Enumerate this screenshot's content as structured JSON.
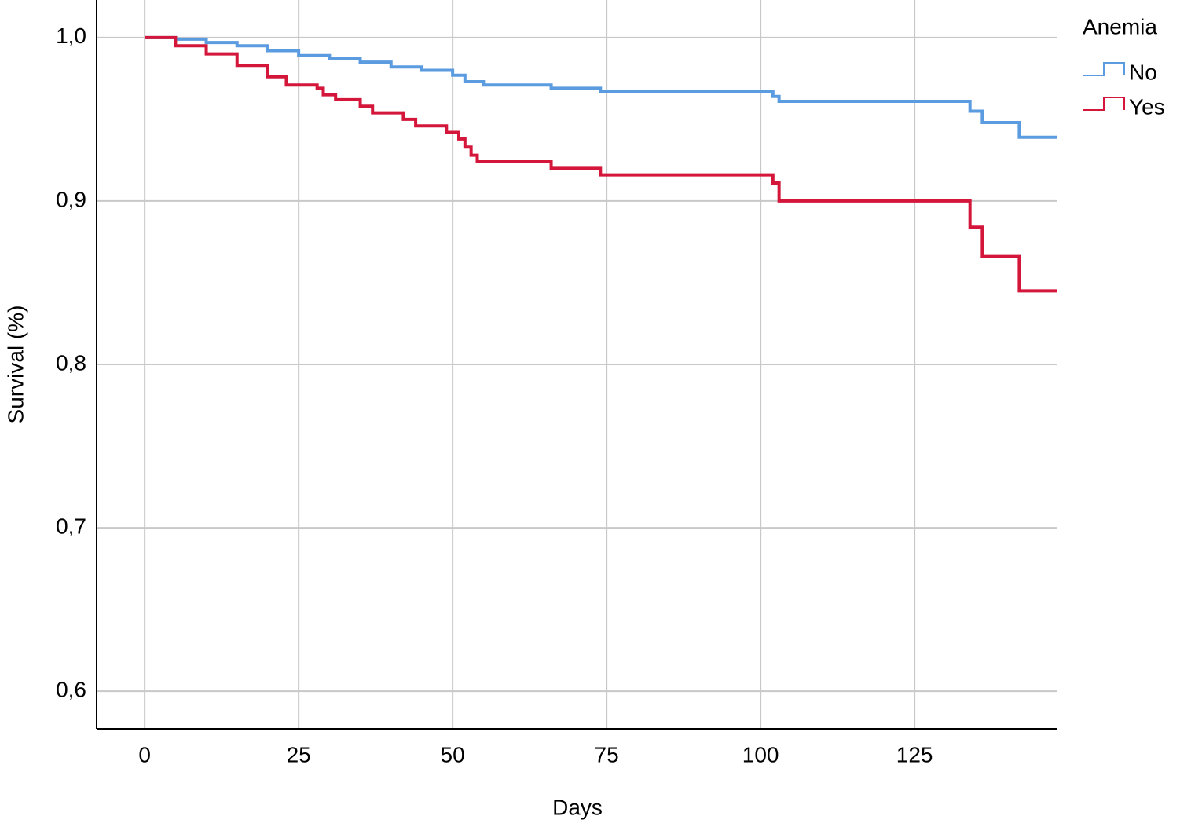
{
  "chart_data": {
    "type": "step",
    "y_label": "Survival (%)",
    "x_label": "Days",
    "legend_title": "Anemia",
    "legend": "right-top",
    "grid": true,
    "xlim": [
      -7.8,
      148.2
    ],
    "ylim": [
      0.577,
      1.023
    ],
    "xticks": [
      0,
      25,
      50,
      75,
      100,
      125
    ],
    "yticks": [
      {
        "value": 0.6,
        "label": "0,6"
      },
      {
        "value": 0.7,
        "label": "0,7"
      },
      {
        "value": 0.8,
        "label": "0,8"
      },
      {
        "value": 0.9,
        "label": "0,9"
      },
      {
        "value": 1.0,
        "label": "1,0"
      }
    ],
    "series": [
      {
        "name": "No",
        "color": "#5b9be0",
        "x": [
          0,
          5,
          10,
          15,
          20,
          25,
          30,
          35,
          40,
          45,
          50,
          52,
          55,
          66,
          74,
          102,
          103,
          134,
          136,
          142
        ],
        "values": [
          1.0,
          0.999,
          0.997,
          0.995,
          0.992,
          0.989,
          0.987,
          0.985,
          0.982,
          0.98,
          0.977,
          0.973,
          0.971,
          0.969,
          0.967,
          0.964,
          0.961,
          0.955,
          0.948,
          0.939
        ]
      },
      {
        "name": "Yes",
        "color": "#d4163a",
        "x": [
          0,
          5,
          10,
          15,
          20,
          23,
          28,
          29,
          31,
          35,
          37,
          42,
          44,
          49,
          51,
          52,
          53,
          54,
          66,
          74,
          102,
          103,
          134,
          136,
          142
        ],
        "values": [
          1.0,
          0.995,
          0.99,
          0.983,
          0.976,
          0.971,
          0.969,
          0.965,
          0.962,
          0.958,
          0.954,
          0.95,
          0.946,
          0.942,
          0.938,
          0.933,
          0.928,
          0.924,
          0.92,
          0.916,
          0.911,
          0.9,
          0.884,
          0.866,
          0.845
        ]
      }
    ]
  }
}
